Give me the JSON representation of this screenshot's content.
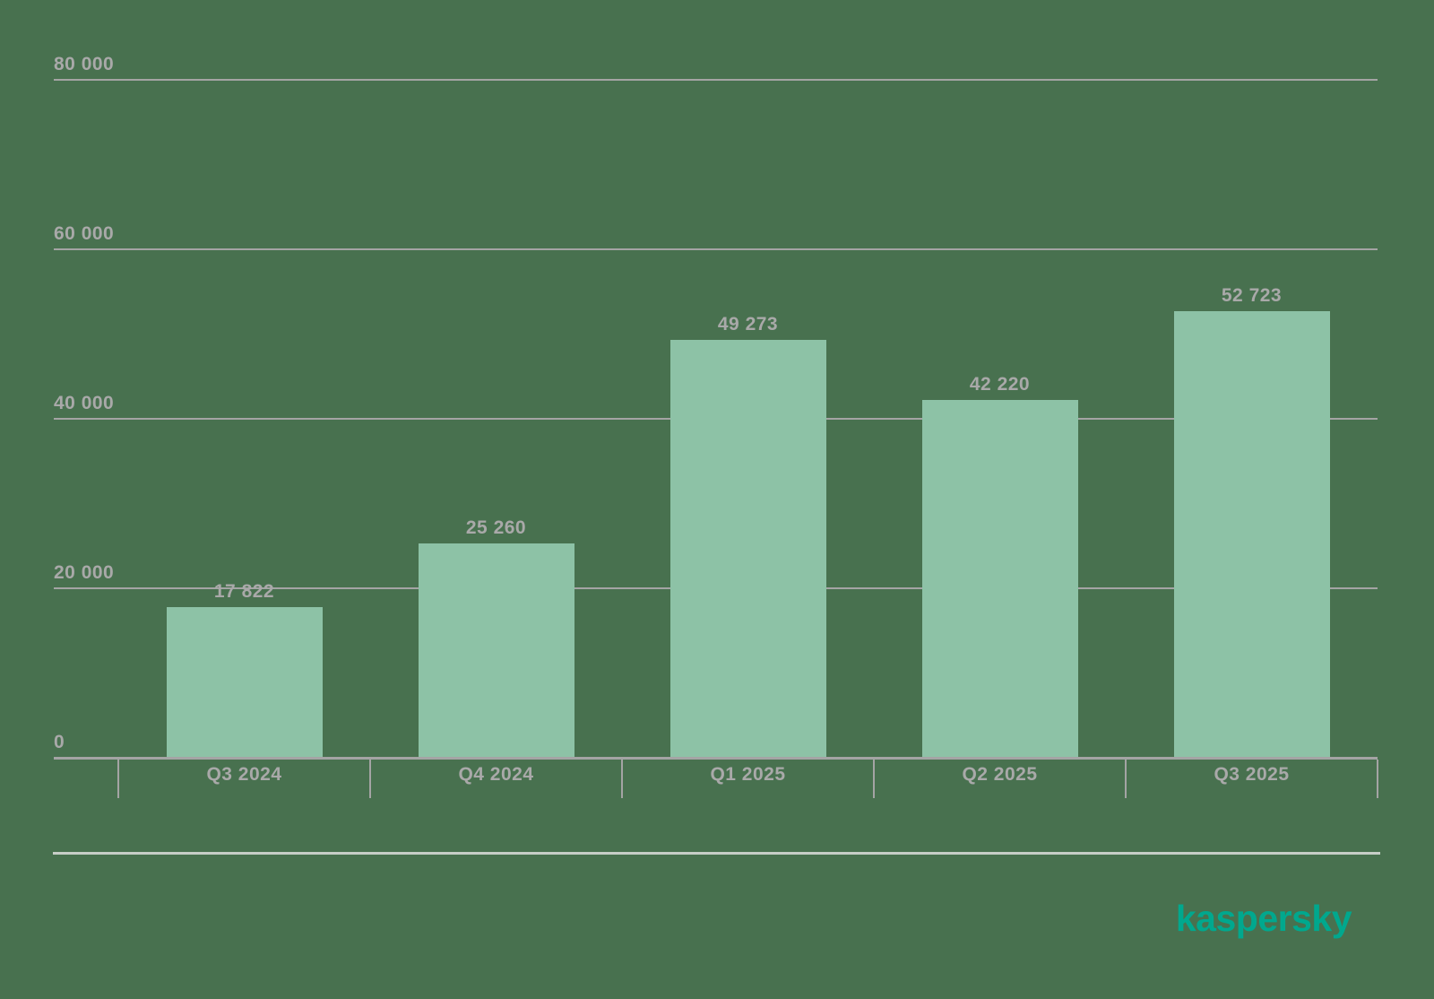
{
  "background_color": "#48714F",
  "chart_data": {
    "type": "bar",
    "title": "",
    "xlabel": "",
    "ylabel": "",
    "categories": [
      "Q3 2024",
      "Q4 2024",
      "Q1 2025",
      "Q2 2025",
      "Q3 2025"
    ],
    "values": [
      17822,
      25260,
      49273,
      42220,
      52723
    ],
    "value_labels": [
      "17 822",
      "25 260",
      "49 273",
      "42 220",
      "52 723"
    ],
    "y_ticks": [
      0,
      20000,
      40000,
      60000,
      80000
    ],
    "y_tick_labels": [
      "0",
      "20 000",
      "40 000",
      "60 000",
      "80 000"
    ],
    "ylim": [
      0,
      80000
    ],
    "grid": "horizontal",
    "legend_position": "none",
    "bar_color": "#8DC2A6",
    "grid_color": "#A4A4A4",
    "label_color": "#A9A9A9",
    "separator_color": "#C7CEC7"
  },
  "footer": {
    "logo_text": "kaspersky",
    "logo_color": "#00A88E"
  }
}
